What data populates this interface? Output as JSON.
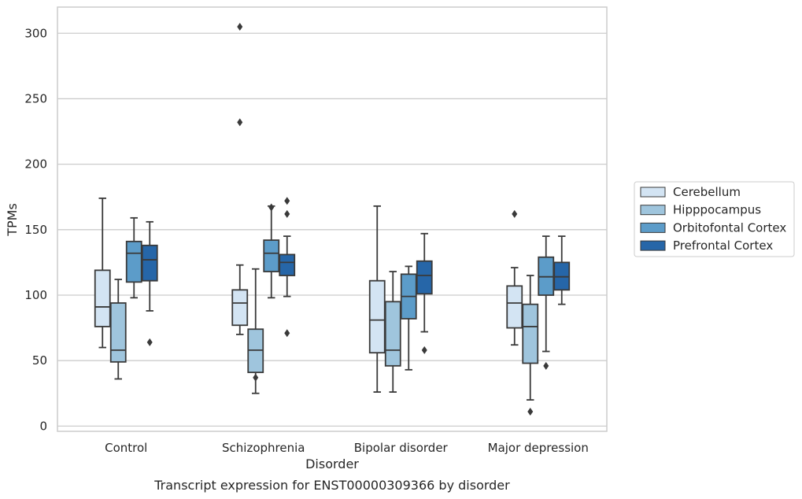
{
  "chart_data": {
    "type": "box",
    "title": "",
    "caption": "Transcript expression for ENST00000309366 by disorder",
    "xlabel": "Disorder",
    "ylabel": "TPMs",
    "ylim": [
      -4,
      320
    ],
    "yticks": [
      0,
      50,
      100,
      150,
      200,
      250,
      300
    ],
    "grid": true,
    "legend_position": "right",
    "categories": [
      "Control",
      "Schizophrenia",
      "Bipolar disorder",
      "Major depression"
    ],
    "series": [
      {
        "name": "Cerebellum",
        "color": "#d3e4f3",
        "boxes": [
          {
            "whislo": 60,
            "q1": 76,
            "med": 91,
            "q3": 119,
            "whishi": 174,
            "fliers": []
          },
          {
            "whislo": 70,
            "q1": 77,
            "med": 94,
            "q3": 104,
            "whishi": 123,
            "fliers": [
              305,
              232
            ]
          },
          {
            "whislo": 26,
            "q1": 56,
            "med": 81,
            "q3": 111,
            "whishi": 168,
            "fliers": []
          },
          {
            "whislo": 62,
            "q1": 75,
            "med": 94,
            "q3": 107,
            "whishi": 121,
            "fliers": [
              162
            ]
          }
        ]
      },
      {
        "name": "Hipppocampus",
        "color": "#9fc5dd",
        "boxes": [
          {
            "whislo": 36,
            "q1": 49,
            "med": 58,
            "q3": 94,
            "whishi": 112,
            "fliers": []
          },
          {
            "whislo": 25,
            "q1": 41,
            "med": 58,
            "q3": 74,
            "whishi": 120,
            "fliers": [
              37
            ]
          },
          {
            "whislo": 26,
            "q1": 46,
            "med": 58,
            "q3": 95,
            "whishi": 118,
            "fliers": []
          },
          {
            "whislo": 20,
            "q1": 48,
            "med": 76,
            "q3": 93,
            "whishi": 115,
            "fliers": [
              11
            ]
          }
        ]
      },
      {
        "name": "Orbitofontal Cortex",
        "color": "#5c9cc9",
        "boxes": [
          {
            "whislo": 98,
            "q1": 110,
            "med": 132,
            "q3": 141,
            "whishi": 159,
            "fliers": []
          },
          {
            "whislo": 98,
            "q1": 118,
            "med": 132,
            "q3": 142,
            "whishi": 168,
            "fliers": [
              167
            ]
          },
          {
            "whislo": 43,
            "q1": 82,
            "med": 99,
            "q3": 116,
            "whishi": 122,
            "fliers": []
          },
          {
            "whislo": 57,
            "q1": 100,
            "med": 114,
            "q3": 129,
            "whishi": 145,
            "fliers": [
              46
            ]
          }
        ]
      },
      {
        "name": "Prefrontal Cortex",
        "color": "#2666a8",
        "boxes": [
          {
            "whislo": 88,
            "q1": 111,
            "med": 127,
            "q3": 138,
            "whishi": 156,
            "fliers": [
              64
            ]
          },
          {
            "whislo": 99,
            "q1": 115,
            "med": 125,
            "q3": 131,
            "whishi": 145,
            "fliers": [
              172,
              162,
              71
            ]
          },
          {
            "whislo": 72,
            "q1": 101,
            "med": 115,
            "q3": 126,
            "whishi": 147,
            "fliers": [
              58
            ]
          },
          {
            "whislo": 93,
            "q1": 104,
            "med": 114,
            "q3": 125,
            "whishi": 145,
            "fliers": []
          }
        ]
      }
    ]
  }
}
